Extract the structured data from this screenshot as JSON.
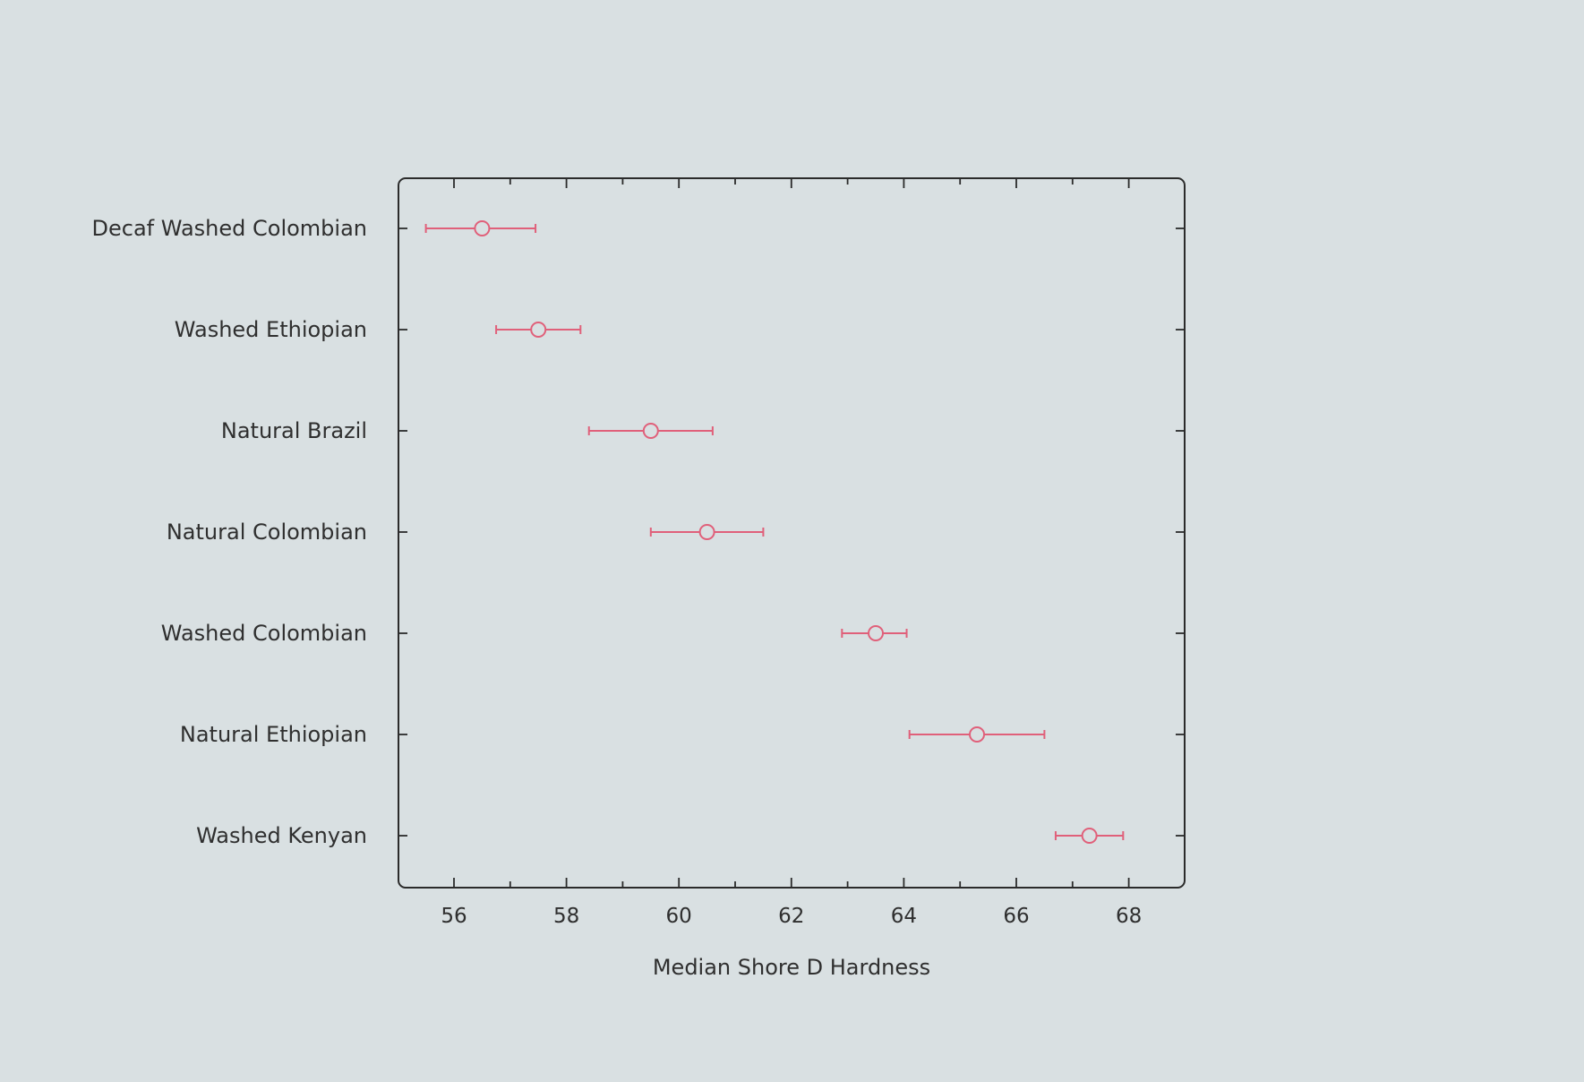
{
  "chart_data": {
    "type": "scatter",
    "title": "",
    "xlabel": "Median Shore D Hardness",
    "ylabel": "",
    "xlim": [
      55,
      69
    ],
    "xticks_major": [
      56,
      58,
      60,
      62,
      64,
      66,
      68
    ],
    "xticks_minor_step": 1,
    "grid": false,
    "categories": [
      "Decaf Washed Colombian",
      "Washed Ethiopian",
      "Natural Brazil",
      "Natural Colombian",
      "Washed Colombian",
      "Natural Ethiopian",
      "Washed Kenyan"
    ],
    "series": [
      {
        "values": [
          56.5,
          57.5,
          59.5,
          60.5,
          63.5,
          65.3,
          67.3
        ],
        "lower": [
          55.5,
          56.75,
          58.4,
          59.5,
          62.9,
          64.1,
          66.7
        ],
        "upper": [
          57.45,
          58.25,
          60.6,
          61.5,
          64.05,
          66.5,
          67.9
        ]
      }
    ],
    "colors": {
      "marker": "#e0607a",
      "axes": "#2b2b2b",
      "background": "#d9e0e2"
    }
  }
}
